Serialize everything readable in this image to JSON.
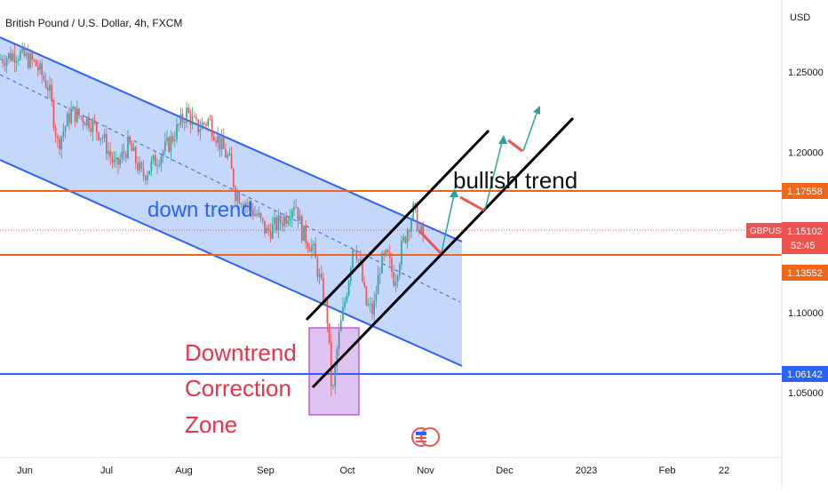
{
  "chart_data": {
    "type": "candlestick",
    "title": "British Pound / U.S. Dollar, 4h, FXCM",
    "currency": "USD",
    "symbol": "GBPUSD",
    "current_price": "1.15102",
    "countdown": "52:45",
    "x_axis_labels": [
      "Jun",
      "Jul",
      "Aug",
      "Sep",
      "Oct",
      "Nov",
      "Dec",
      "2023",
      "Feb",
      "22"
    ],
    "y_axis_ticks": [
      "1.25000",
      "1.20000",
      "1.10000",
      "1.05000"
    ],
    "y_axis_tick_values": [
      1.25,
      1.2,
      1.1,
      1.05
    ],
    "ylim": [
      1.0,
      1.29
    ],
    "price_lines": [
      {
        "label": "1.17558",
        "value": 1.17558,
        "color": "#f2661a"
      },
      {
        "label": "1.13552",
        "value": 1.13552,
        "color": "#f2661a"
      },
      {
        "label": "1.06142",
        "value": 1.06142,
        "color": "#2962ff"
      }
    ],
    "annotations": {
      "down_trend": "down trend",
      "bullish_trend": "bullish trend",
      "correction_line1": "Downtrend",
      "correction_line2": "Correction",
      "correction_line3": "Zone"
    },
    "price_path": [
      [
        0,
        1.258
      ],
      [
        20,
        1.262
      ],
      [
        40,
        1.255
      ],
      [
        55,
        1.24
      ],
      [
        65,
        1.205
      ],
      [
        80,
        1.225
      ],
      [
        100,
        1.22
      ],
      [
        115,
        1.21
      ],
      [
        130,
        1.19
      ],
      [
        145,
        1.205
      ],
      [
        160,
        1.185
      ],
      [
        175,
        1.195
      ],
      [
        190,
        1.205
      ],
      [
        200,
        1.215
      ],
      [
        210,
        1.225
      ],
      [
        222,
        1.215
      ],
      [
        235,
        1.22
      ],
      [
        248,
        1.205
      ],
      [
        258,
        1.195
      ],
      [
        265,
        1.175
      ],
      [
        275,
        1.17
      ],
      [
        290,
        1.16
      ],
      [
        300,
        1.15
      ],
      [
        312,
        1.155
      ],
      [
        322,
        1.16
      ],
      [
        332,
        1.17
      ],
      [
        340,
        1.15
      ],
      [
        352,
        1.14
      ],
      [
        360,
        1.12
      ],
      [
        368,
        1.1
      ],
      [
        374,
        1.045
      ],
      [
        380,
        1.08
      ],
      [
        386,
        1.1
      ],
      [
        392,
        1.12
      ],
      [
        398,
        1.145
      ],
      [
        405,
        1.13
      ],
      [
        412,
        1.105
      ],
      [
        420,
        1.1
      ],
      [
        428,
        1.13
      ],
      [
        436,
        1.135
      ],
      [
        444,
        1.12
      ],
      [
        452,
        1.14
      ],
      [
        460,
        1.155
      ],
      [
        466,
        1.165
      ],
      [
        472,
        1.15
      ],
      [
        478,
        1.148
      ]
    ]
  },
  "colors": {
    "up": "#26a69a",
    "down": "#ef5350",
    "channel": "#2962ff",
    "channel_fill": "#bbd0fb",
    "bull_channel": "#000000",
    "zone_fill": "#d8b8f0",
    "zone_stroke": "#9c27b0",
    "red_text": "#e8334a",
    "blue_text": "#2962ff",
    "badge_gbp": "#ef5350"
  }
}
